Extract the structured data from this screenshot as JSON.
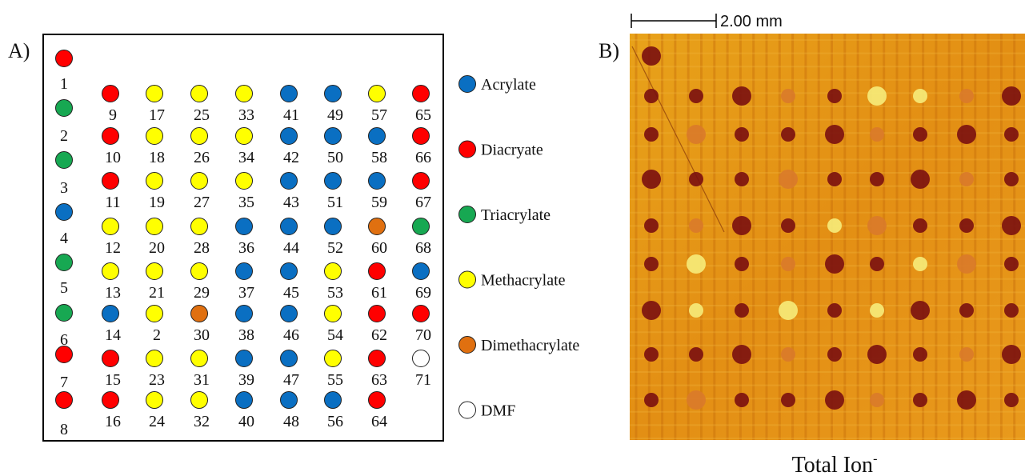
{
  "panel_a": {
    "label": "A)",
    "columns": [
      [
        {
          "label": "1",
          "color": "#ff0000"
        },
        {
          "label": "2",
          "color": "#17a852"
        },
        {
          "label": "3",
          "color": "#17a852"
        },
        {
          "label": "4",
          "color": "#0a6fc2"
        },
        {
          "label": "5",
          "color": "#17a852"
        },
        {
          "label": "6",
          "color": "#17a852"
        },
        {
          "label": "7",
          "color": "#ff0000"
        },
        {
          "label": "8",
          "color": "#ff0000"
        }
      ],
      [
        {
          "label": "9",
          "color": "#ff0000"
        },
        {
          "label": "10",
          "color": "#ff0000"
        },
        {
          "label": "11",
          "color": "#ff0000"
        },
        {
          "label": "12",
          "color": "#ffff00"
        },
        {
          "label": "13",
          "color": "#ffff00"
        },
        {
          "label": "14",
          "color": "#0a6fc2"
        },
        {
          "label": "15",
          "color": "#ff0000"
        },
        {
          "label": "16",
          "color": "#ff0000"
        }
      ],
      [
        {
          "label": "17",
          "color": "#ffff00"
        },
        {
          "label": "18",
          "color": "#ffff00"
        },
        {
          "label": "19",
          "color": "#ffff00"
        },
        {
          "label": "20",
          "color": "#ffff00"
        },
        {
          "label": "21",
          "color": "#ffff00"
        },
        {
          "label": "2",
          "color": "#ffff00"
        },
        {
          "label": "23",
          "color": "#ffff00"
        },
        {
          "label": "24",
          "color": "#ffff00"
        }
      ],
      [
        {
          "label": "25",
          "color": "#ffff00"
        },
        {
          "label": "26",
          "color": "#ffff00"
        },
        {
          "label": "27",
          "color": "#ffff00"
        },
        {
          "label": "28",
          "color": "#ffff00"
        },
        {
          "label": "29",
          "color": "#ffff00"
        },
        {
          "label": "30",
          "color": "#e07010"
        },
        {
          "label": "31",
          "color": "#ffff00"
        },
        {
          "label": "32",
          "color": "#ffff00"
        }
      ],
      [
        {
          "label": "33",
          "color": "#ffff00"
        },
        {
          "label": "34",
          "color": "#ffff00"
        },
        {
          "label": "35",
          "color": "#ffff00"
        },
        {
          "label": "36",
          "color": "#0a6fc2"
        },
        {
          "label": "37",
          "color": "#0a6fc2"
        },
        {
          "label": "38",
          "color": "#0a6fc2"
        },
        {
          "label": "39",
          "color": "#0a6fc2"
        },
        {
          "label": "40",
          "color": "#0a6fc2"
        }
      ],
      [
        {
          "label": "41",
          "color": "#0a6fc2"
        },
        {
          "label": "42",
          "color": "#0a6fc2"
        },
        {
          "label": "43",
          "color": "#0a6fc2"
        },
        {
          "label": "44",
          "color": "#0a6fc2"
        },
        {
          "label": "45",
          "color": "#0a6fc2"
        },
        {
          "label": "46",
          "color": "#0a6fc2"
        },
        {
          "label": "47",
          "color": "#0a6fc2"
        },
        {
          "label": "48",
          "color": "#0a6fc2"
        }
      ],
      [
        {
          "label": "49",
          "color": "#0a6fc2"
        },
        {
          "label": "50",
          "color": "#0a6fc2"
        },
        {
          "label": "51",
          "color": "#0a6fc2"
        },
        {
          "label": "52",
          "color": "#0a6fc2"
        },
        {
          "label": "53",
          "color": "#ffff00"
        },
        {
          "label": "54",
          "color": "#ffff00"
        },
        {
          "label": "55",
          "color": "#ffff00"
        },
        {
          "label": "56",
          "color": "#0a6fc2"
        }
      ],
      [
        {
          "label": "57",
          "color": "#ffff00"
        },
        {
          "label": "58",
          "color": "#0a6fc2"
        },
        {
          "label": "59",
          "color": "#0a6fc2"
        },
        {
          "label": "60",
          "color": "#e07010"
        },
        {
          "label": "61",
          "color": "#ff0000"
        },
        {
          "label": "62",
          "color": "#ff0000"
        },
        {
          "label": "63",
          "color": "#ff0000"
        },
        {
          "label": "64",
          "color": "#ff0000"
        }
      ],
      [
        {
          "label": "65",
          "color": "#ff0000"
        },
        {
          "label": "66",
          "color": "#ff0000"
        },
        {
          "label": "67",
          "color": "#ff0000"
        },
        {
          "label": "68",
          "color": "#17a852"
        },
        {
          "label": "69",
          "color": "#0a6fc2"
        },
        {
          "label": "70",
          "color": "#ff0000"
        },
        {
          "label": "71",
          "color": "#ffffff"
        }
      ]
    ],
    "legend": [
      {
        "label": "Acrylate",
        "color": "#0a6fc2"
      },
      {
        "label": "Diacryate",
        "color": "#ff0000"
      },
      {
        "label": "Triacrylate",
        "color": "#17a852"
      },
      {
        "label": "Methacrylate",
        "color": "#ffff00"
      },
      {
        "label": "Dimethacrylate",
        "color": "#e07010"
      },
      {
        "label": "DMF",
        "color": "#ffffff"
      }
    ]
  },
  "panel_b": {
    "label": "B)",
    "scale_bar": "2.00 mm",
    "caption": "Total Ion",
    "caption_superscript": "-"
  }
}
